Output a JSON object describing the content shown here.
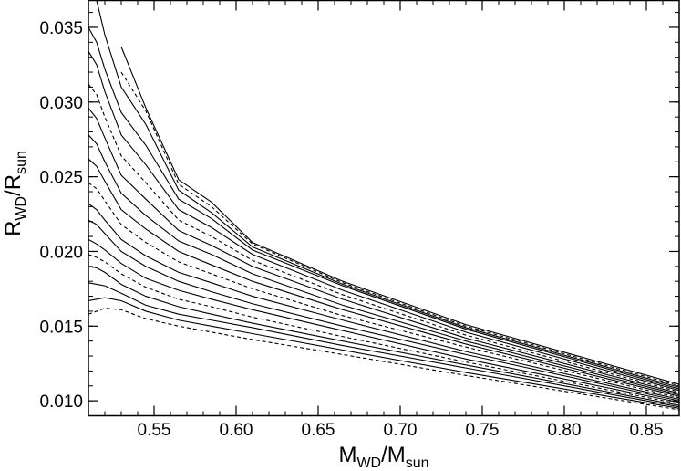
{
  "chart_data": {
    "type": "line",
    "title": "",
    "xlabel": {
      "main": "M",
      "main_sub": "WD",
      "sep": "/",
      "denom": "M",
      "denom_sub": "sun"
    },
    "ylabel": {
      "main": "R",
      "main_sub": "WD",
      "sep": "/",
      "denom": "R",
      "denom_sub": "sun"
    },
    "xlim": [
      0.51,
      0.87
    ],
    "ylim": [
      0.009,
      0.0368
    ],
    "x_ticks": [
      0.55,
      0.6,
      0.65,
      0.7,
      0.75,
      0.8,
      0.85
    ],
    "x_tick_labels": [
      "0.55",
      "0.60",
      "0.65",
      "0.70",
      "0.75",
      "0.80",
      "0.85"
    ],
    "y_ticks": [
      0.01,
      0.015,
      0.02,
      0.025,
      0.03,
      0.035
    ],
    "y_tick_labels": [
      "0.010",
      "0.015",
      "0.020",
      "0.025",
      "0.030",
      "0.035"
    ],
    "x_minor_step": 0.01,
    "y_minor_step": 0.001,
    "grid": false,
    "legend": "none",
    "line_color": "#000000",
    "x": [
      0.53,
      0.545,
      0.565,
      0.585,
      0.61,
      0.665,
      0.74,
      0.87
    ],
    "series": [
      {
        "style": "dashed",
        "values": [
          0.0161,
          0.0155,
          0.015,
          0.0146,
          0.0141,
          0.0131,
          0.0117,
          0.0094
        ]
      },
      {
        "style": "solid",
        "values": [
          0.0167,
          0.016,
          0.0154,
          0.015,
          0.0145,
          0.0134,
          0.0119,
          0.0095
        ]
      },
      {
        "style": "solid",
        "values": [
          0.0172,
          0.0164,
          0.0158,
          0.0154,
          0.0149,
          0.0137,
          0.0122,
          0.0096
        ]
      },
      {
        "style": "solid",
        "values": [
          0.0178,
          0.017,
          0.0163,
          0.0158,
          0.0152,
          0.014,
          0.0124,
          0.0097
        ]
      },
      {
        "style": "dashed",
        "values": [
          0.0185,
          0.0176,
          0.0168,
          0.0163,
          0.0156,
          0.0143,
          0.0126,
          0.0098
        ]
      },
      {
        "style": "solid",
        "values": [
          0.0192,
          0.0182,
          0.0174,
          0.0168,
          0.0161,
          0.0147,
          0.0128,
          0.0099
        ]
      },
      {
        "style": "solid",
        "values": [
          0.02,
          0.019,
          0.018,
          0.0173,
          0.0165,
          0.015,
          0.0131,
          0.01
        ]
      },
      {
        "style": "solid",
        "values": [
          0.0208,
          0.0197,
          0.0186,
          0.0179,
          0.017,
          0.0154,
          0.0133,
          0.0101
        ]
      },
      {
        "style": "dashed",
        "values": [
          0.0218,
          0.0206,
          0.0193,
          0.0185,
          0.0175,
          0.0157,
          0.0136,
          0.0102
        ]
      },
      {
        "style": "solid",
        "values": [
          0.0228,
          0.0215,
          0.02,
          0.0191,
          0.018,
          0.0161,
          0.0138,
          0.0103
        ]
      },
      {
        "style": "solid",
        "values": [
          0.0239,
          0.0224,
          0.0207,
          0.0198,
          0.0185,
          0.0164,
          0.014,
          0.0104
        ]
      },
      {
        "style": "solid",
        "values": [
          0.0251,
          0.0235,
          0.0214,
          0.0204,
          0.019,
          0.0168,
          0.0142,
          0.0105
        ]
      },
      {
        "style": "dashed",
        "values": [
          0.0264,
          0.0246,
          0.0221,
          0.021,
          0.0194,
          0.0171,
          0.0144,
          0.0106
        ]
      },
      {
        "style": "solid",
        "values": [
          0.0278,
          0.0258,
          0.0228,
          0.0216,
          0.0198,
          0.0174,
          0.0146,
          0.0107
        ]
      },
      {
        "style": "solid",
        "values": [
          0.0293,
          0.0271,
          0.0235,
          0.0222,
          0.0201,
          0.0177,
          0.0148,
          0.0108
        ]
      },
      {
        "style": "solid",
        "values": [
          0.031,
          0.0285,
          0.0241,
          0.0226,
          0.0203,
          0.0178,
          0.0149,
          0.0109
        ]
      },
      {
        "style": "dashed",
        "values": [
          0.032,
          0.0294,
          0.0245,
          0.023,
          0.0205,
          0.0179,
          0.015,
          0.011
        ]
      },
      {
        "style": "solid",
        "values": [
          0.0337,
          0.0296,
          0.0248,
          0.0233,
          0.0206,
          0.018,
          0.0151,
          0.0111
        ]
      }
    ],
    "extension": {
      "x": [
        0.51,
        0.515,
        0.52,
        0.53
      ],
      "comment_free": true,
      "values": [
        [
          0.0158,
          0.016,
          0.0162,
          0.0161
        ],
        [
          0.0167,
          0.0168,
          0.0169,
          0.0167
        ],
        [
          0.0179,
          0.0178,
          0.0177,
          0.0172
        ],
        [
          0.019,
          0.0189,
          0.0186,
          0.0178
        ],
        [
          0.0198,
          0.0196,
          0.0193,
          0.0185
        ],
        [
          0.0208,
          0.0205,
          0.0201,
          0.0192
        ],
        [
          0.0221,
          0.0218,
          0.0212,
          0.02
        ],
        [
          0.0232,
          0.0228,
          0.0221,
          0.0208
        ],
        [
          0.0246,
          0.0242,
          0.0234,
          0.0218
        ],
        [
          0.0262,
          0.0257,
          0.0247,
          0.0228
        ],
        [
          0.0278,
          0.0272,
          0.026,
          0.0239
        ],
        [
          0.0296,
          0.0289,
          0.0276,
          0.0251
        ],
        [
          0.0312,
          0.0305,
          0.029,
          0.0264
        ],
        [
          0.0334,
          0.0325,
          0.0307,
          0.0278
        ],
        [
          0.035,
          0.034,
          0.0322,
          0.0293
        ],
        [
          0.0368,
          0.0368,
          0.0345,
          0.031
        ]
      ]
    }
  }
}
